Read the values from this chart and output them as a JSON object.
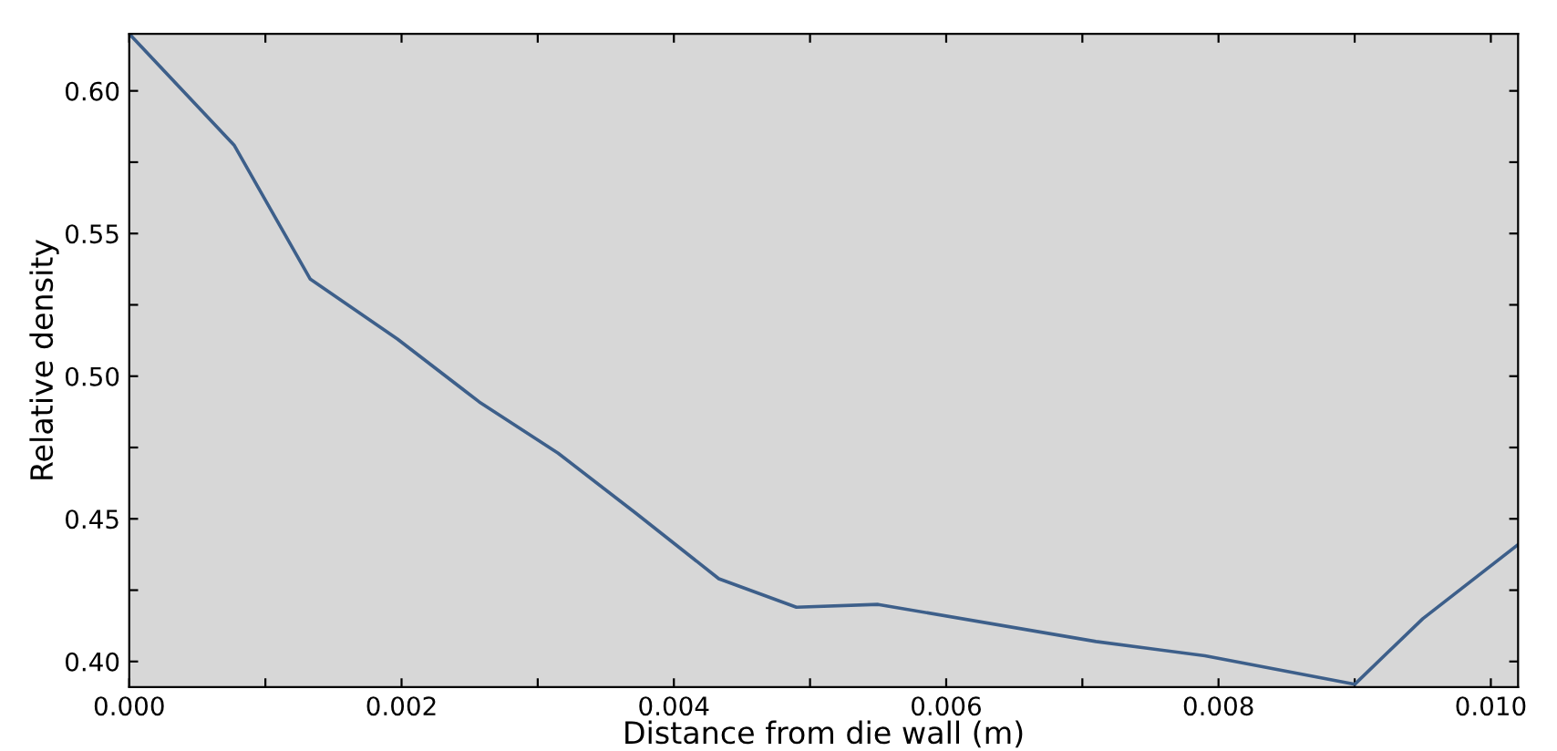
{
  "chart_data": {
    "type": "line",
    "xlabel": "Distance from die wall (m)",
    "ylabel": "Relative density",
    "x": [
      0,
      0.00077,
      0.00133,
      0.00197,
      0.00257,
      0.00315,
      0.00372,
      0.00433,
      0.0049,
      0.0055,
      0.0071,
      0.0079,
      0.009,
      0.0095,
      0.0102
    ],
    "series": [
      {
        "color": "#3d5f8a",
        "values": [
          0.62,
          0.581,
          0.534,
          0.513,
          0.491,
          0.473,
          0.452,
          0.429,
          0.419,
          0.42,
          0.407,
          0.402,
          0.392,
          0.415,
          0.441
        ]
      }
    ],
    "xlim": [
      0,
      0.0102
    ],
    "ylim": [
      0.391,
      0.62
    ],
    "xticks": [
      {
        "value": 0,
        "label": "0.000"
      },
      {
        "value": 0.001,
        "label": null
      },
      {
        "value": 0.002,
        "label": "0.002"
      },
      {
        "value": 0.003,
        "label": null
      },
      {
        "value": 0.004,
        "label": "0.004"
      },
      {
        "value": 0.005,
        "label": null
      },
      {
        "value": 0.006,
        "label": "0.006"
      },
      {
        "value": 0.007,
        "label": null
      },
      {
        "value": 0.008,
        "label": "0.008"
      },
      {
        "value": 0.009,
        "label": null
      },
      {
        "value": 0.01,
        "label": "0.010"
      }
    ],
    "yticks": [
      {
        "value": 0.4,
        "label": "0.40"
      },
      {
        "value": 0.425,
        "label": null
      },
      {
        "value": 0.45,
        "label": "0.45"
      },
      {
        "value": 0.475,
        "label": null
      },
      {
        "value": 0.5,
        "label": "0.50"
      },
      {
        "value": 0.525,
        "label": null
      },
      {
        "value": 0.55,
        "label": "0.55"
      },
      {
        "value": 0.575,
        "label": null
      },
      {
        "value": 0.6,
        "label": "0.60"
      }
    ],
    "grid": false,
    "legend": false,
    "marker": "none",
    "line_style": "solid"
  }
}
